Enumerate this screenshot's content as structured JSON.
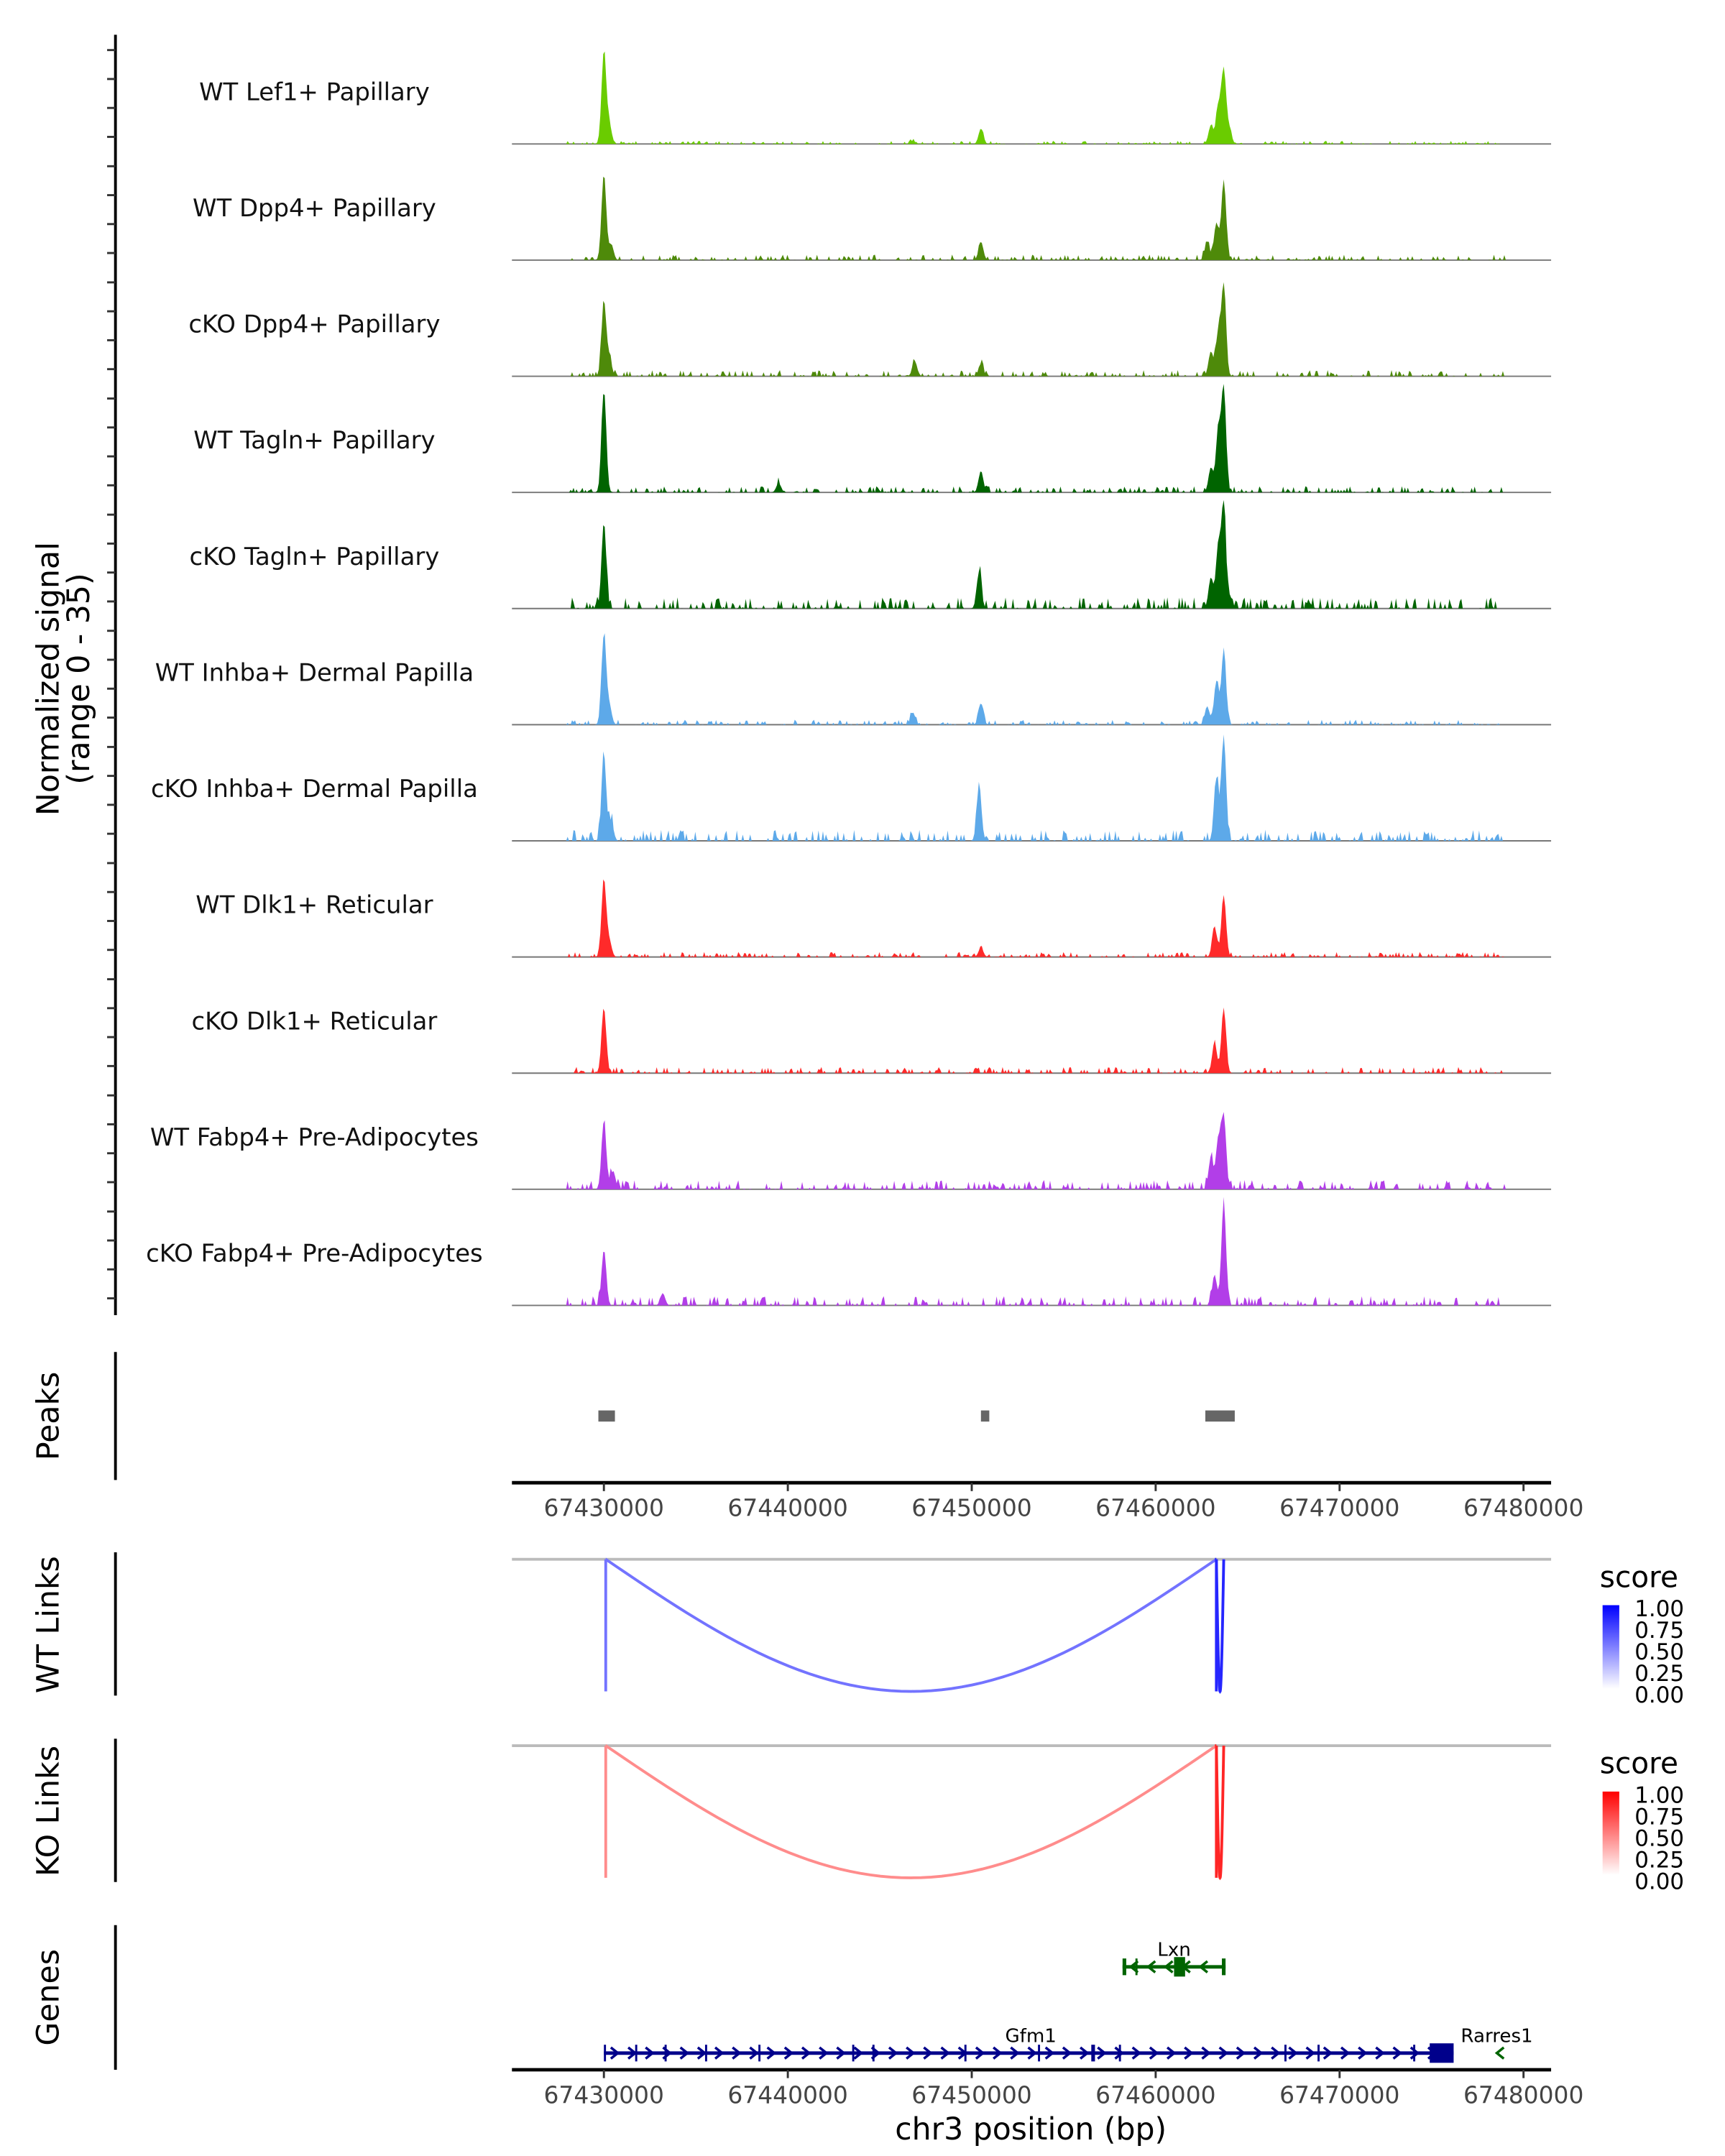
{
  "chart_data": {
    "type": "area",
    "title": "",
    "region": {
      "chrom": "chr3",
      "start": 67425000,
      "end": 67481500
    },
    "coverage": {
      "ylabel": "Normalized signal\n(range 0 - 35)",
      "ylim": [
        0,
        35
      ],
      "tracks": [
        {
          "name": "WT Lef1+ Papillary",
          "color": "#6ACC00",
          "peaks": [
            [
              67430000,
              30
            ],
            [
              67430300,
              6
            ],
            [
              67446800,
              1
            ],
            [
              67450500,
              5
            ],
            [
              67463000,
              6
            ],
            [
              67463400,
              12
            ],
            [
              67463700,
              24
            ],
            [
              67464000,
              5
            ]
          ],
          "noise": 0.5
        },
        {
          "name": "WT Dpp4+ Papillary",
          "color": "#4E8A0A",
          "peaks": [
            [
              67430000,
              28
            ],
            [
              67430400,
              5
            ],
            [
              67450500,
              6
            ],
            [
              67462800,
              6
            ],
            [
              67463300,
              12
            ],
            [
              67463700,
              26
            ]
          ],
          "noise": 0.9
        },
        {
          "name": "cKO Dpp4+ Papillary",
          "color": "#4E8A0A",
          "peaks": [
            [
              67430000,
              24
            ],
            [
              67430300,
              6
            ],
            [
              67446900,
              5
            ],
            [
              67450500,
              4
            ],
            [
              67463000,
              8
            ],
            [
              67463400,
              14
            ],
            [
              67463700,
              28
            ]
          ],
          "noise": 1.0
        },
        {
          "name": "WT Tagln+ Papillary",
          "color": "#006400",
          "peaks": [
            [
              67430000,
              33
            ],
            [
              67439500,
              3
            ],
            [
              67450500,
              7
            ],
            [
              67463000,
              8
            ],
            [
              67463400,
              20
            ],
            [
              67463700,
              34
            ]
          ],
          "noise": 1.0
        },
        {
          "name": "cKO Tagln+ Papillary",
          "color": "#006400",
          "peaks": [
            [
              67430000,
              28
            ],
            [
              67450400,
              12
            ],
            [
              67463000,
              10
            ],
            [
              67463400,
              20
            ],
            [
              67463700,
              34
            ]
          ],
          "noise": 1.8
        },
        {
          "name": "WT Inhba+ Dermal Papilla",
          "color": "#5DA9E9",
          "peaks": [
            [
              67430000,
              29
            ],
            [
              67430300,
              6
            ],
            [
              67446800,
              4
            ],
            [
              67450500,
              7
            ],
            [
              67462800,
              6
            ],
            [
              67463300,
              14
            ],
            [
              67463700,
              24
            ]
          ],
          "noise": 0.8
        },
        {
          "name": "cKO Inhba+ Dermal Papilla",
          "color": "#5DA9E9",
          "peaks": [
            [
              67430000,
              28
            ],
            [
              67430400,
              6
            ],
            [
              67450400,
              18
            ],
            [
              67463300,
              20
            ],
            [
              67463700,
              34
            ]
          ],
          "noise": 1.8
        },
        {
          "name": "WT Dlk1+ Reticular",
          "color": "#FF2A2A",
          "peaks": [
            [
              67430000,
              25
            ],
            [
              67430300,
              5
            ],
            [
              67450500,
              3
            ],
            [
              67463200,
              10
            ],
            [
              67463700,
              20
            ]
          ],
          "noise": 0.8
        },
        {
          "name": "cKO Dlk1+ Reticular",
          "color": "#FF2A2A",
          "peaks": [
            [
              67430000,
              21
            ],
            [
              67463200,
              10
            ],
            [
              67463700,
              21
            ]
          ],
          "noise": 1.0
        },
        {
          "name": "WT Fabp4+ Pre-Adipocytes",
          "color": "#B23EE8",
          "peaks": [
            [
              67430000,
              22
            ],
            [
              67430500,
              6
            ],
            [
              67463000,
              10
            ],
            [
              67463400,
              16
            ],
            [
              67463700,
              24
            ]
          ],
          "noise": 1.5
        },
        {
          "name": "cKO Fabp4+ Pre-Adipocytes",
          "color": "#B23EE8",
          "peaks": [
            [
              67430000,
              18
            ],
            [
              67433200,
              4
            ],
            [
              67463200,
              10
            ],
            [
              67463700,
              33
            ]
          ],
          "noise": 1.5
        }
      ]
    },
    "peaks_track": {
      "label": "Peaks",
      "color": "#666666",
      "regions": [
        [
          67429700,
          67430600
        ],
        [
          67450500,
          67450900
        ],
        [
          67462700,
          67464300
        ]
      ]
    },
    "x_axis": {
      "ticks": [
        67430000,
        67440000,
        67450000,
        67460000,
        67470000,
        67480000
      ],
      "tick_labels": [
        "67430000",
        "67440000",
        "67450000",
        "67460000",
        "67470000",
        "67480000"
      ],
      "xlabel": "chr3 position (bp)"
    },
    "links": [
      {
        "label": "WT Links",
        "legend_title": "score",
        "low_color": "#FFFFFF",
        "high_color": "#0000FF",
        "legend_ticks": [
          "1.00",
          "0.75",
          "0.50",
          "0.25",
          "0.00"
        ],
        "arcs": [
          {
            "start": 67430100,
            "end": 67463300,
            "score": 0.55
          },
          {
            "start": 67463300,
            "end": 67463700,
            "score": 0.85
          }
        ]
      },
      {
        "label": "KO Links",
        "legend_title": "score",
        "low_color": "#FFFFFF",
        "high_color": "#FF0000",
        "legend_ticks": [
          "1.00",
          "0.75",
          "0.50",
          "0.25",
          "0.00"
        ],
        "arcs": [
          {
            "start": 67430100,
            "end": 67463300,
            "score": 0.45
          },
          {
            "start": 67463300,
            "end": 67463700,
            "score": 0.85
          }
        ]
      }
    ],
    "genes_track": {
      "label": "Genes",
      "genes": [
        {
          "name": "Lxn",
          "strand": "-",
          "start": 67458200,
          "end": 67463800,
          "color": "#006400",
          "exons": [
            [
              67458200,
              67458400
            ],
            [
              67458900,
              67459000
            ],
            [
              67461000,
              67461600
            ],
            [
              67463600,
              67463800
            ]
          ]
        },
        {
          "name": "Gfm1",
          "strand": "+",
          "start": 67430000,
          "end": 67476200,
          "color": "#00008B",
          "exons": [
            [
              67430000,
              67430100
            ],
            [
              67431700,
              67431800
            ],
            [
              67433300,
              67433400
            ],
            [
              67435500,
              67435600
            ],
            [
              67438400,
              67438500
            ],
            [
              67443500,
              67443600
            ],
            [
              67444600,
              67444700
            ],
            [
              67449600,
              67449700
            ],
            [
              67453600,
              67453700
            ],
            [
              67456500,
              67456700
            ],
            [
              67458000,
              67458100
            ],
            [
              67467000,
              67467100
            ],
            [
              67468800,
              67468900
            ],
            [
              67474000,
              67474100
            ],
            [
              67474900,
              67476200
            ]
          ]
        },
        {
          "name": "Rarres1",
          "strand": "-",
          "start": 67478700,
          "end": 67479000,
          "color": "#006400",
          "exons": []
        }
      ]
    }
  }
}
